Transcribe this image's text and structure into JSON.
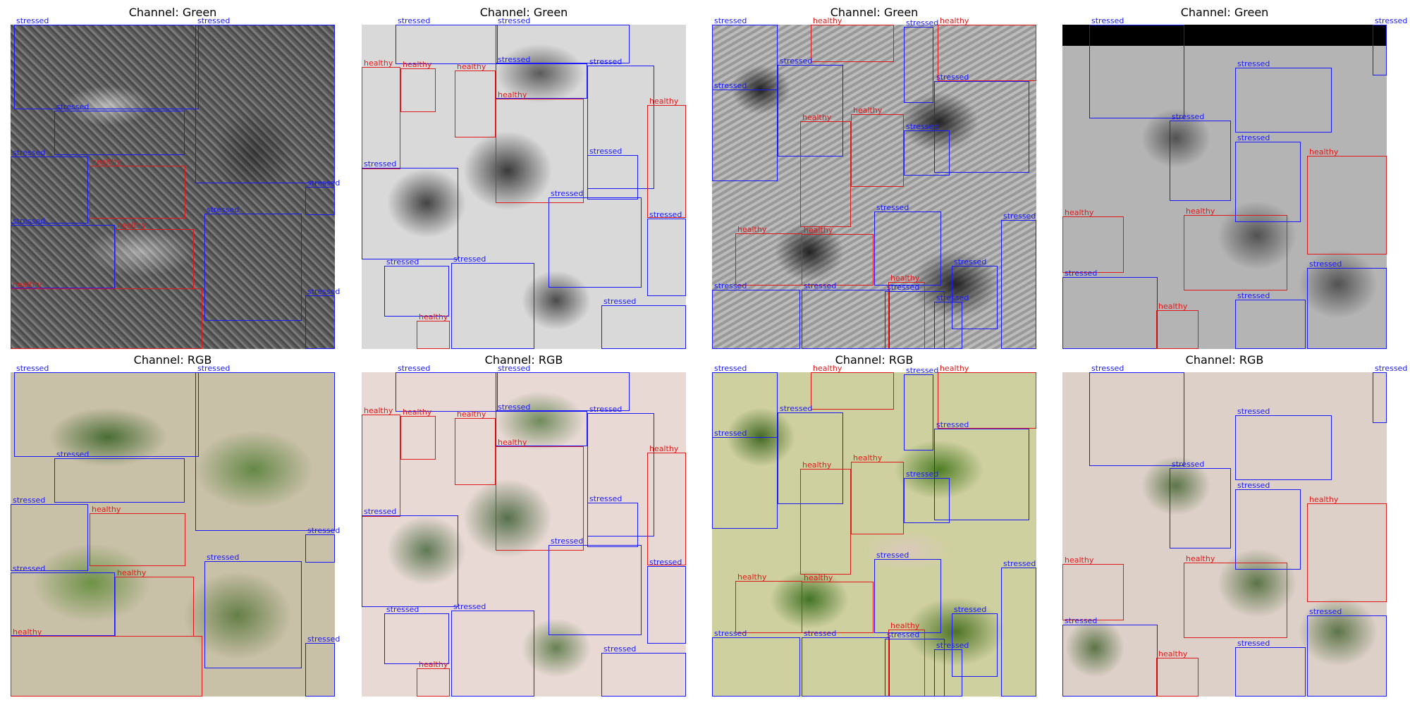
{
  "panels": [
    {
      "title": "Channel: Green",
      "boxes": [
        {
          "label": "stressed",
          "cls": "stressed"
        },
        {
          "label": "stressed",
          "cls": "stressed"
        },
        {
          "label": "stressed",
          "cls": "stressed"
        },
        {
          "label": "stressed",
          "cls": "stressed"
        },
        {
          "label": "healthy",
          "cls": "healthy"
        },
        {
          "label": "stressed",
          "cls": "stressed"
        },
        {
          "label": "healthy",
          "cls": "healthy"
        },
        {
          "label": "stressed",
          "cls": "stressed"
        },
        {
          "label": "stressed",
          "cls": "stressed"
        },
        {
          "label": "healthy",
          "cls": "healthy"
        },
        {
          "label": "stressed",
          "cls": "stressed"
        }
      ]
    },
    {
      "title": "Channel: Green",
      "boxes": [
        {
          "label": "stressed",
          "cls": "stressed"
        },
        {
          "label": "stressed",
          "cls": "stressed"
        },
        {
          "label": "healthy",
          "cls": "healthy"
        },
        {
          "label": "healthy",
          "cls": "healthy"
        },
        {
          "label": "healthy",
          "cls": "healthy"
        },
        {
          "label": "stressed",
          "cls": "stressed"
        },
        {
          "label": "stressed",
          "cls": "stressed"
        },
        {
          "label": "healthy",
          "cls": "healthy"
        },
        {
          "label": "stressed",
          "cls": "stressed"
        },
        {
          "label": "stressed",
          "cls": "stressed"
        },
        {
          "label": "stressed",
          "cls": "stressed"
        },
        {
          "label": "healthy",
          "cls": "healthy"
        },
        {
          "label": "stressed",
          "cls": "stressed"
        },
        {
          "label": "stressed",
          "cls": "stressed"
        },
        {
          "label": "stressed",
          "cls": "stressed"
        },
        {
          "label": "stressed",
          "cls": "stressed"
        },
        {
          "label": "healthy",
          "cls": "healthy"
        }
      ]
    },
    {
      "title": "Channel: Green",
      "boxes": [
        {
          "label": "stressed",
          "cls": "stressed"
        },
        {
          "label": "healthy",
          "cls": "healthy"
        },
        {
          "label": "stressed",
          "cls": "stressed"
        },
        {
          "label": "healthy",
          "cls": "healthy"
        },
        {
          "label": "stressed",
          "cls": "stressed"
        },
        {
          "label": "stressed",
          "cls": "stressed"
        },
        {
          "label": "stressed",
          "cls": "stressed"
        },
        {
          "label": "stressed",
          "cls": "stressed"
        },
        {
          "label": "healthy",
          "cls": "healthy"
        },
        {
          "label": "healthy",
          "cls": "healthy"
        },
        {
          "label": "stressed",
          "cls": "stressed"
        },
        {
          "label": "stressed",
          "cls": "stressed"
        },
        {
          "label": "healthy",
          "cls": "healthy"
        },
        {
          "label": "healthy",
          "cls": "healthy"
        },
        {
          "label": "stressed",
          "cls": "stressed"
        },
        {
          "label": "healthy",
          "cls": "healthy"
        },
        {
          "label": "stressed",
          "cls": "stressed"
        },
        {
          "label": "stressed",
          "cls": "stressed"
        },
        {
          "label": "stressed",
          "cls": "stressed"
        },
        {
          "label": "stressed",
          "cls": "stressed"
        }
      ]
    },
    {
      "title": "Channel: Green",
      "boxes": [
        {
          "label": "stressed",
          "cls": "stressed"
        },
        {
          "label": "stressed",
          "cls": "stressed"
        },
        {
          "label": "stressed",
          "cls": "stressed"
        },
        {
          "label": "stressed",
          "cls": "stressed"
        },
        {
          "label": "stressed",
          "cls": "stressed"
        },
        {
          "label": "healthy",
          "cls": "healthy"
        },
        {
          "label": "healthy",
          "cls": "healthy"
        },
        {
          "label": "healthy",
          "cls": "healthy"
        },
        {
          "label": "stressed",
          "cls": "stressed"
        },
        {
          "label": "stressed",
          "cls": "stressed"
        },
        {
          "label": "healthy",
          "cls": "healthy"
        },
        {
          "label": "stressed",
          "cls": "stressed"
        }
      ]
    },
    {
      "title": "Channel: RGB",
      "boxes": [
        {
          "label": "stressed",
          "cls": "stressed"
        },
        {
          "label": "stressed",
          "cls": "stressed"
        },
        {
          "label": "stressed",
          "cls": "stressed"
        },
        {
          "label": "stressed",
          "cls": "stressed"
        },
        {
          "label": "healthy",
          "cls": "healthy"
        },
        {
          "label": "stressed",
          "cls": "stressed"
        },
        {
          "label": "healthy",
          "cls": "healthy"
        },
        {
          "label": "stressed",
          "cls": "stressed"
        },
        {
          "label": "stressed",
          "cls": "stressed"
        },
        {
          "label": "healthy",
          "cls": "healthy"
        },
        {
          "label": "stressed",
          "cls": "stressed"
        }
      ]
    },
    {
      "title": "Channel: RGB",
      "boxes": [
        {
          "label": "stressed",
          "cls": "stressed"
        },
        {
          "label": "stressed",
          "cls": "stressed"
        },
        {
          "label": "healthy",
          "cls": "healthy"
        },
        {
          "label": "healthy",
          "cls": "healthy"
        },
        {
          "label": "healthy",
          "cls": "healthy"
        },
        {
          "label": "stressed",
          "cls": "stressed"
        },
        {
          "label": "stressed",
          "cls": "stressed"
        },
        {
          "label": "healthy",
          "cls": "healthy"
        },
        {
          "label": "stressed",
          "cls": "stressed"
        },
        {
          "label": "stressed",
          "cls": "stressed"
        },
        {
          "label": "stressed",
          "cls": "stressed"
        },
        {
          "label": "healthy",
          "cls": "healthy"
        },
        {
          "label": "stressed",
          "cls": "stressed"
        },
        {
          "label": "stressed",
          "cls": "stressed"
        },
        {
          "label": "stressed",
          "cls": "stressed"
        },
        {
          "label": "stressed",
          "cls": "stressed"
        },
        {
          "label": "healthy",
          "cls": "healthy"
        }
      ]
    },
    {
      "title": "Channel: RGB",
      "boxes": [
        {
          "label": "stressed",
          "cls": "stressed"
        },
        {
          "label": "healthy",
          "cls": "healthy"
        },
        {
          "label": "stressed",
          "cls": "stressed"
        },
        {
          "label": "healthy",
          "cls": "healthy"
        },
        {
          "label": "stressed",
          "cls": "stressed"
        },
        {
          "label": "stressed",
          "cls": "stressed"
        },
        {
          "label": "stressed",
          "cls": "stressed"
        },
        {
          "label": "stressed",
          "cls": "stressed"
        },
        {
          "label": "healthy",
          "cls": "healthy"
        },
        {
          "label": "healthy",
          "cls": "healthy"
        },
        {
          "label": "stressed",
          "cls": "stressed"
        },
        {
          "label": "stressed",
          "cls": "stressed"
        },
        {
          "label": "healthy",
          "cls": "healthy"
        },
        {
          "label": "healthy",
          "cls": "healthy"
        },
        {
          "label": "stressed",
          "cls": "stressed"
        },
        {
          "label": "healthy",
          "cls": "healthy"
        },
        {
          "label": "stressed",
          "cls": "stressed"
        },
        {
          "label": "stressed",
          "cls": "stressed"
        },
        {
          "label": "stressed",
          "cls": "stressed"
        },
        {
          "label": "stressed",
          "cls": "stressed"
        }
      ]
    },
    {
      "title": "Channel: RGB",
      "boxes": [
        {
          "label": "stressed",
          "cls": "stressed"
        },
        {
          "label": "stressed",
          "cls": "stressed"
        },
        {
          "label": "stressed",
          "cls": "stressed"
        },
        {
          "label": "stressed",
          "cls": "stressed"
        },
        {
          "label": "stressed",
          "cls": "stressed"
        },
        {
          "label": "healthy",
          "cls": "healthy"
        },
        {
          "label": "healthy",
          "cls": "healthy"
        },
        {
          "label": "healthy",
          "cls": "healthy"
        },
        {
          "label": "stressed",
          "cls": "stressed"
        },
        {
          "label": "stressed",
          "cls": "stressed"
        },
        {
          "label": "healthy",
          "cls": "healthy"
        },
        {
          "label": "stressed",
          "cls": "stressed"
        }
      ]
    }
  ],
  "colors": {
    "stressed": "#1a1aff",
    "healthy": "#e01a1a"
  }
}
